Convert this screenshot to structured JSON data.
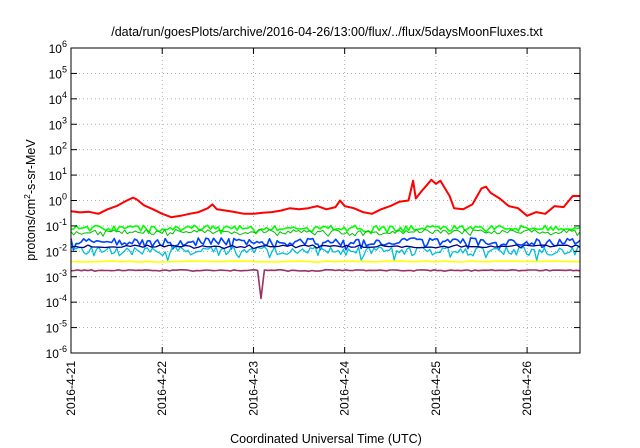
{
  "chart_data": {
    "type": "line",
    "title": "/data/run/goesPlots/archive/2016-04-26/13:00/flux/../flux/5daysMoonFluxes.txt",
    "xlabel": "Coordinated Universal Time (UTC)",
    "ylabel_parts": {
      "pre": "protons/cm",
      "sup": "2",
      "post": "-s-sr-MeV"
    },
    "y_scale": "log",
    "ylim_exponents": [
      -6,
      6
    ],
    "ytick_base": "10",
    "ytick_exponents": [
      "6",
      "5",
      "4",
      "3",
      "2",
      "1",
      "0",
      "-1",
      "-2",
      "-3",
      "-4",
      "-5",
      "-6"
    ],
    "xlim_days": [
      0,
      5.58
    ],
    "xtick_labels": [
      "2016-4-21",
      "2016-4-22",
      "2016-4-23",
      "2016-4-24",
      "2016-4-25",
      "2016-4-26"
    ],
    "grid": true,
    "series": [
      {
        "color": "#ff0000",
        "width": 2.0,
        "points": [
          [
            0,
            0.38
          ],
          [
            0.1,
            0.34
          ],
          [
            0.2,
            0.36
          ],
          [
            0.3,
            0.3
          ],
          [
            0.4,
            0.45
          ],
          [
            0.5,
            0.6
          ],
          [
            0.6,
            0.95
          ],
          [
            0.68,
            1.3
          ],
          [
            0.72,
            1.1
          ],
          [
            0.8,
            0.65
          ],
          [
            0.9,
            0.45
          ],
          [
            1.0,
            0.3
          ],
          [
            1.1,
            0.22
          ],
          [
            1.2,
            0.25
          ],
          [
            1.3,
            0.3
          ],
          [
            1.4,
            0.35
          ],
          [
            1.5,
            0.5
          ],
          [
            1.55,
            0.7
          ],
          [
            1.6,
            0.45
          ],
          [
            1.7,
            0.4
          ],
          [
            1.8,
            0.35
          ],
          [
            1.9,
            0.3
          ],
          [
            2.0,
            0.3
          ],
          [
            2.1,
            0.33
          ],
          [
            2.2,
            0.35
          ],
          [
            2.3,
            0.4
          ],
          [
            2.4,
            0.5
          ],
          [
            2.5,
            0.45
          ],
          [
            2.6,
            0.5
          ],
          [
            2.7,
            0.6
          ],
          [
            2.8,
            0.45
          ],
          [
            2.9,
            0.55
          ],
          [
            2.95,
            1.0
          ],
          [
            3.0,
            0.6
          ],
          [
            3.1,
            0.5
          ],
          [
            3.2,
            0.35
          ],
          [
            3.3,
            0.3
          ],
          [
            3.4,
            0.45
          ],
          [
            3.5,
            0.6
          ],
          [
            3.6,
            0.9
          ],
          [
            3.7,
            1.0
          ],
          [
            3.75,
            6.0
          ],
          [
            3.78,
            1.2
          ],
          [
            3.85,
            2.5
          ],
          [
            3.9,
            4.0
          ],
          [
            3.95,
            6.5
          ],
          [
            4.0,
            4.5
          ],
          [
            4.05,
            6.0
          ],
          [
            4.1,
            3.0
          ],
          [
            4.15,
            1.5
          ],
          [
            4.2,
            0.5
          ],
          [
            4.3,
            0.45
          ],
          [
            4.4,
            0.7
          ],
          [
            4.5,
            3.0
          ],
          [
            4.55,
            3.5
          ],
          [
            4.6,
            2.0
          ],
          [
            4.7,
            1.2
          ],
          [
            4.8,
            0.6
          ],
          [
            4.9,
            0.5
          ],
          [
            5.0,
            0.25
          ],
          [
            5.1,
            0.35
          ],
          [
            5.2,
            0.3
          ],
          [
            5.3,
            0.6
          ],
          [
            5.4,
            0.55
          ],
          [
            5.5,
            1.5
          ],
          [
            5.58,
            1.5
          ]
        ]
      },
      {
        "color": "#00ff00",
        "width": 1.6,
        "base": 0.085,
        "amp": 0.25,
        "seed": 3,
        "n": 190
      },
      {
        "color": "#00c000",
        "width": 1.0,
        "base": 0.06,
        "amp": 0.2,
        "seed": 19,
        "n": 190
      },
      {
        "color": "#0044ff",
        "width": 1.6,
        "base": 0.025,
        "amp": 0.35,
        "seed": 11,
        "n": 200
      },
      {
        "color": "#00bfd8",
        "width": 1.3,
        "base": 0.011,
        "amp": 0.4,
        "seed": 23,
        "n": 200
      },
      {
        "color": "#000080",
        "width": 1.3,
        "base": 0.016,
        "amp": 0.12,
        "seed": 7,
        "n": 120
      },
      {
        "color": "#ffff00",
        "width": 1.6,
        "base": 0.004,
        "amp": 0.04,
        "seed": 5,
        "n": 60
      },
      {
        "color": "#993366",
        "width": 1.6,
        "base": 0.0018,
        "amp": 0.05,
        "seed": 13,
        "n": 150,
        "spike": {
          "x": 2.09,
          "y": 0.00014
        }
      }
    ]
  }
}
